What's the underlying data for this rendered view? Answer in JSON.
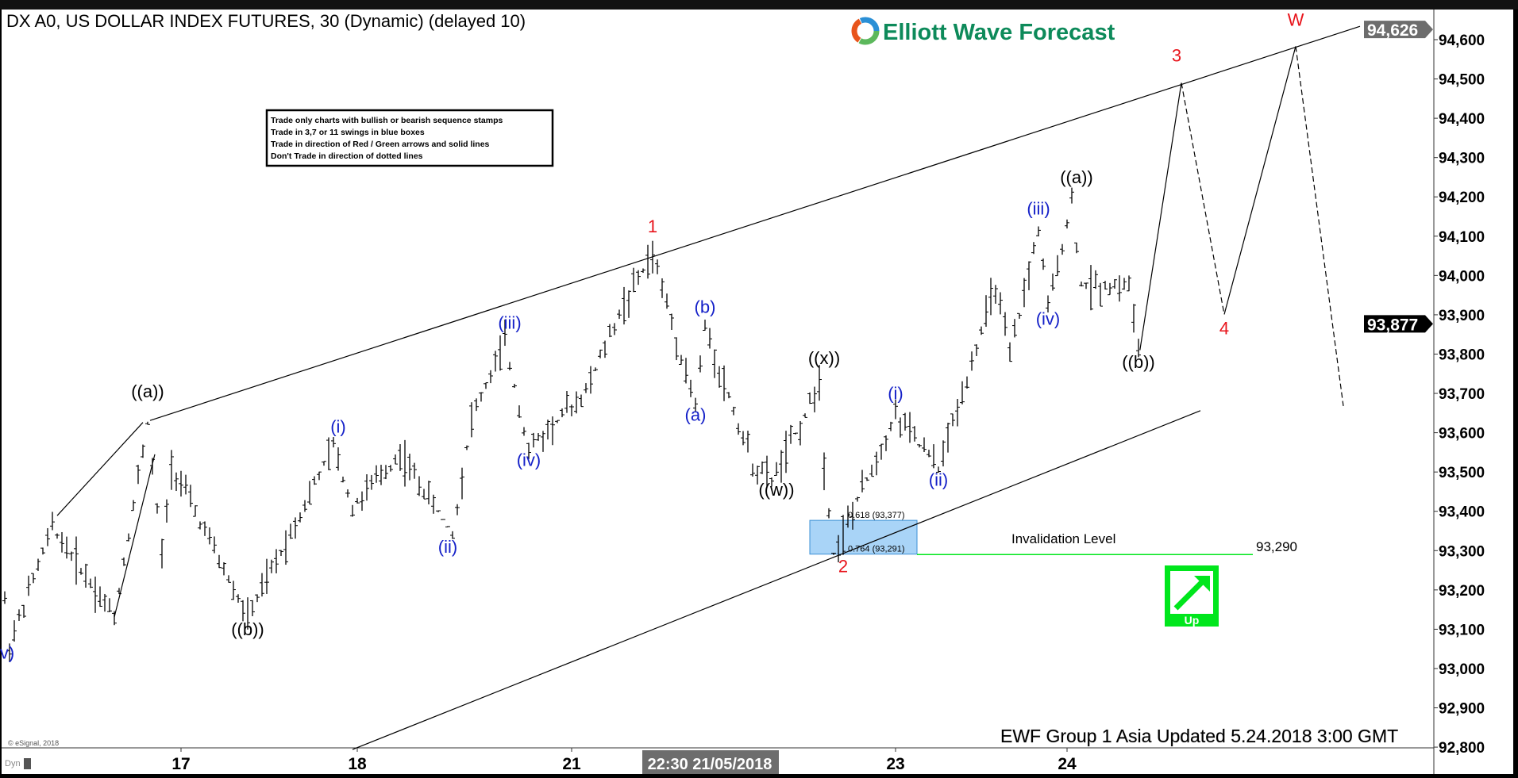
{
  "header": {
    "title": "DX A0, US DOLLAR INDEX FUTURES, 30 (Dynamic) (delayed 10)",
    "logo_text": "Elliott Wave Forecast"
  },
  "notes": [
    "Trade only charts with bullish or bearish sequence stamps",
    "Trade in 3,7 or 11 swings in blue boxes",
    "Trade in direction of Red / Green arrows and solid lines",
    "Don't Trade in direction of dotted lines"
  ],
  "footer": {
    "updated": "EWF Group 1 Asia Updated 5.24.2018 3:00 GMT",
    "copyright": "© eSignal, 2018",
    "dyn_label": "Dyn"
  },
  "colors": {
    "red": "#e8141b",
    "blue": "#1420c8",
    "green": "#00e61c",
    "box": "#a9d4f7",
    "logo_green": "#0d8a5a"
  },
  "chart_data": {
    "type": "ohlc-bar",
    "ylim": [
      92780,
      94680
    ],
    "y_ticks": [
      "94,600",
      "94,500",
      "94,400",
      "94,300",
      "94,200",
      "94,100",
      "94,000",
      "93,900",
      "93,800",
      "93,700",
      "93,600",
      "93,500",
      "93,400",
      "93,300",
      "93,200",
      "93,100",
      "93,000",
      "92,900",
      "92,800"
    ],
    "x_ticks": [
      {
        "label": "17",
        "bar": 37
      },
      {
        "label": "18",
        "bar": 74
      },
      {
        "label": "21",
        "bar": 119
      },
      {
        "label": "23",
        "bar": 187
      },
      {
        "label": "24",
        "bar": 223
      }
    ],
    "crosshair_time": {
      "label": "22:30 21/05/2018",
      "bar": 148
    },
    "price_tags": {
      "high": "94,626",
      "last": "93,877"
    },
    "price_pivots": [
      {
        "bar": 0,
        "price": 93170
      },
      {
        "bar": 1,
        "price": 93060
      },
      {
        "bar": 10,
        "price": 93360
      },
      {
        "bar": 23,
        "price": 93132
      },
      {
        "bar": 30,
        "price": 93626
      },
      {
        "bar": 33,
        "price": 93287
      },
      {
        "bar": 35,
        "price": 93520
      },
      {
        "bar": 51,
        "price": 93127
      },
      {
        "bar": 69,
        "price": 93565
      },
      {
        "bar": 73,
        "price": 93410
      },
      {
        "bar": 83,
        "price": 93545
      },
      {
        "bar": 94,
        "price": 93343
      },
      {
        "bar": 98,
        "price": 93638
      },
      {
        "bar": 105,
        "price": 93828
      },
      {
        "bar": 110,
        "price": 93557
      },
      {
        "bar": 122,
        "price": 93705
      },
      {
        "bar": 129,
        "price": 93902
      },
      {
        "bar": 136,
        "price": 94056
      },
      {
        "bar": 145,
        "price": 93668
      },
      {
        "bar": 147,
        "price": 93865
      },
      {
        "bar": 157,
        "price": 93520
      },
      {
        "bar": 161,
        "price": 93478
      },
      {
        "bar": 168,
        "price": 93643
      },
      {
        "bar": 171,
        "price": 93737
      },
      {
        "bar": 172,
        "price": 93520
      },
      {
        "bar": 174,
        "price": 93294
      },
      {
        "bar": 178,
        "price": 93397
      },
      {
        "bar": 187,
        "price": 93648
      },
      {
        "bar": 196,
        "price": 93508
      },
      {
        "bar": 208,
        "price": 93975
      },
      {
        "bar": 211,
        "price": 93790
      },
      {
        "bar": 217,
        "price": 94118
      },
      {
        "bar": 219,
        "price": 93914
      },
      {
        "bar": 224,
        "price": 94189
      },
      {
        "bar": 226,
        "price": 93975
      },
      {
        "bar": 236,
        "price": 93975
      },
      {
        "bar": 238,
        "price": 93810
      }
    ],
    "projection": [
      {
        "bar": 238.3,
        "price": 93810,
        "style": "solid"
      },
      {
        "bar": 247,
        "price": 94490,
        "style": "dashed"
      },
      {
        "bar": 256,
        "price": 93901,
        "style": "solid"
      },
      {
        "bar": 271,
        "price": 94583,
        "style": "dashed"
      },
      {
        "bar": 281,
        "price": 93668
      }
    ],
    "channel": {
      "upper": [
        {
          "bar": 30.5,
          "price": 93631
        },
        {
          "bar": 284.5,
          "price": 94634
        }
      ],
      "lower": [
        {
          "bar": 73,
          "price": 92794
        },
        {
          "bar": 251,
          "price": 93656
        }
      ]
    },
    "aux_lines": [
      [
        {
          "bar": 11,
          "price": 93389
        },
        {
          "bar": 29,
          "price": 93626
        }
      ],
      [
        {
          "bar": 23,
          "price": 93131
        },
        {
          "bar": 31.5,
          "price": 93545
        }
      ]
    ],
    "blue_box": {
      "bar_from": 169,
      "bar_to": 191.5,
      "price_top": 93377,
      "price_bottom": 93291,
      "fib_top": "0.618 (93,377)",
      "fib_bottom": "0.764 (93,291)"
    },
    "invalidation": {
      "label": "Invalidation Level",
      "value_label": "93,290",
      "price": 93290,
      "bar_from": 191.5,
      "bar_to": 262
    },
    "up_stamp": {
      "label": "Up",
      "direction": "up"
    },
    "wave_labels": [
      {
        "text": "v)",
        "bar": 0.5,
        "price": 93025,
        "color": "blue"
      },
      {
        "text": "((a))",
        "bar": 30,
        "price": 93690,
        "color": "black"
      },
      {
        "text": "((b))",
        "bar": 51,
        "price": 93085,
        "color": "black"
      },
      {
        "text": "(i)",
        "bar": 70,
        "price": 93600,
        "color": "blue"
      },
      {
        "text": "(ii)",
        "bar": 93,
        "price": 93295,
        "color": "blue"
      },
      {
        "text": "(iii)",
        "bar": 106,
        "price": 93865,
        "color": "blue"
      },
      {
        "text": "(iv)",
        "bar": 110,
        "price": 93515,
        "color": "blue"
      },
      {
        "text": "1",
        "bar": 136,
        "price": 94110,
        "color": "red"
      },
      {
        "text": "(b)",
        "bar": 147,
        "price": 93905,
        "color": "blue"
      },
      {
        "text": "(a)",
        "bar": 145,
        "price": 93630,
        "color": "blue"
      },
      {
        "text": "((w))",
        "bar": 162,
        "price": 93440,
        "color": "black"
      },
      {
        "text": "((x))",
        "bar": 172,
        "price": 93775,
        "color": "black"
      },
      {
        "text": "2",
        "bar": 176,
        "price": 93245,
        "color": "red"
      },
      {
        "text": "(i)",
        "bar": 187,
        "price": 93685,
        "color": "blue"
      },
      {
        "text": "(ii)",
        "bar": 196,
        "price": 93465,
        "color": "blue"
      },
      {
        "text": "(iii)",
        "bar": 217,
        "price": 94155,
        "color": "blue"
      },
      {
        "text": "(iv)",
        "bar": 219,
        "price": 93875,
        "color": "blue"
      },
      {
        "text": "((a))",
        "bar": 225,
        "price": 94235,
        "color": "black"
      },
      {
        "text": "((b))",
        "bar": 238,
        "price": 93765,
        "color": "black"
      },
      {
        "text": "3",
        "bar": 246,
        "price": 94545,
        "color": "red"
      },
      {
        "text": "4",
        "bar": 256,
        "price": 93850,
        "color": "red"
      },
      {
        "text": "W",
        "bar": 271,
        "price": 94635,
        "color": "red"
      }
    ]
  }
}
